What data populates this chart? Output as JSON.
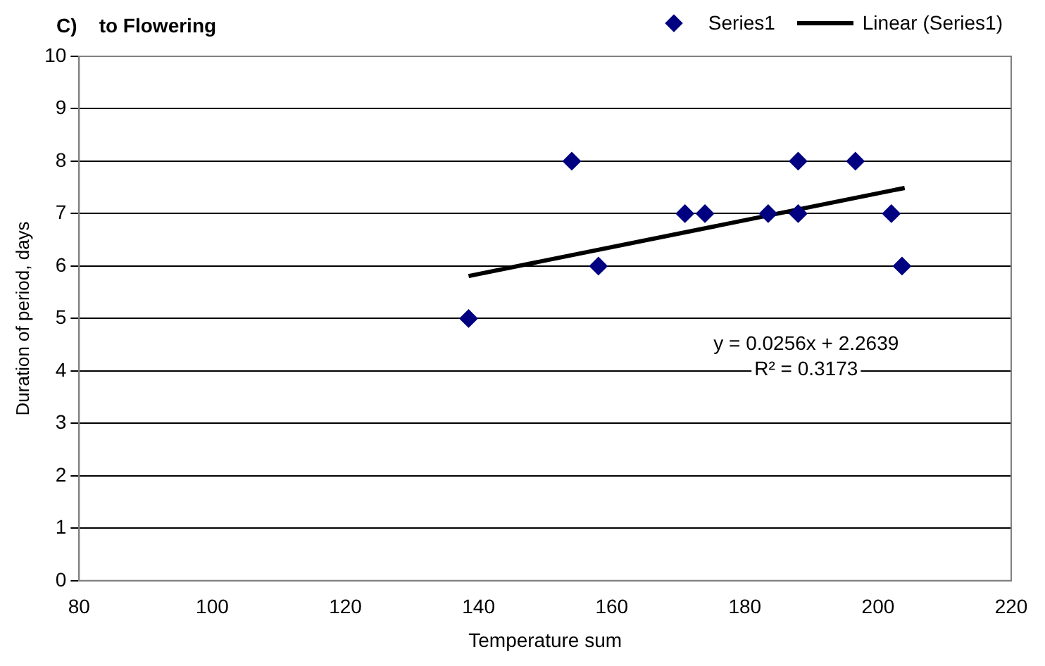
{
  "chart_data": {
    "type": "scatter",
    "title": "C)    to Flowering",
    "xlabel": "Temperature sum",
    "ylabel": "Duration of period, days",
    "series": [
      {
        "name": "Series1",
        "type": "scatter",
        "color": "#000080",
        "marker": "diamond",
        "x": [
          138.5,
          154,
          158,
          171,
          174,
          183.5,
          188,
          188,
          196.6,
          202,
          203.6
        ],
        "values": [
          5,
          8,
          6,
          7,
          7,
          7,
          8,
          7,
          8,
          7,
          6
        ]
      },
      {
        "name": "Linear (Series1)",
        "type": "line",
        "color": "#000000",
        "marker": "none",
        "x": [
          138.5,
          204
        ],
        "values": [
          5.81,
          7.49
        ]
      }
    ],
    "xlim": [
      80,
      220
    ],
    "xticks": [
      80,
      100,
      120,
      140,
      160,
      180,
      200,
      220
    ],
    "ylim": [
      0,
      10
    ],
    "yticks": [
      0,
      1,
      2,
      3,
      4,
      5,
      6,
      7,
      8,
      9,
      10
    ],
    "grid": "y",
    "legend": "top right",
    "annotations": [
      "y = 0.0256x + 2.2639",
      "R² = 0.3173"
    ]
  }
}
